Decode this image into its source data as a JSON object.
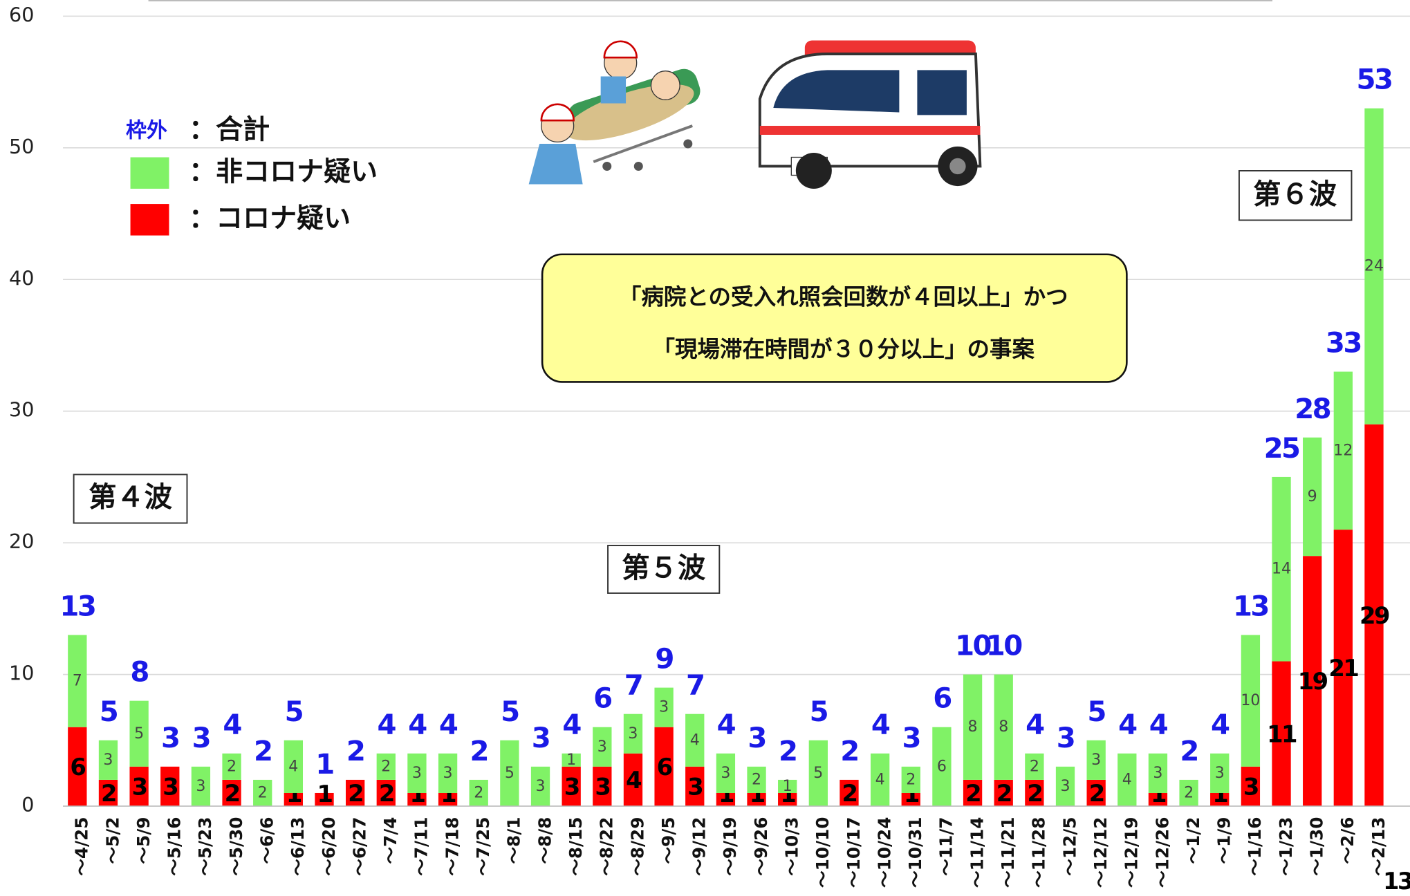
{
  "chart_data": {
    "type": "bar",
    "stacked": true,
    "categories": [
      "～4/25",
      "～5/2",
      "～5/9",
      "～5/16",
      "～5/23",
      "～5/30",
      "～6/6",
      "～6/13",
      "～6/20",
      "～6/27",
      "～7/4",
      "～7/11",
      "～7/18",
      "～7/25",
      "～8/1",
      "～8/8",
      "～8/15",
      "～8/22",
      "～8/29",
      "～9/5",
      "～9/12",
      "～9/19",
      "～9/26",
      "～10/3",
      "～10/10",
      "～10/17",
      "～10/24",
      "～10/31",
      "～11/7",
      "～11/14",
      "～11/21",
      "～11/28",
      "～12/5",
      "～12/12",
      "～12/19",
      "～12/26",
      "～1/2",
      "～1/9",
      "～1/16",
      "～1/23",
      "～1/30",
      "～2/6",
      "～2/13"
    ],
    "series": [
      {
        "name": "コロナ疑い",
        "color": "#ff0000",
        "values": [
          6,
          2,
          3,
          3,
          0,
          2,
          0,
          1,
          1,
          2,
          2,
          1,
          1,
          0,
          0,
          0,
          3,
          3,
          4,
          6,
          3,
          1,
          1,
          1,
          0,
          2,
          0,
          1,
          0,
          2,
          2,
          2,
          0,
          2,
          0,
          1,
          0,
          1,
          3,
          11,
          19,
          21,
          29
        ]
      },
      {
        "name": "非コロナ疑い",
        "color": "#80f266",
        "values": [
          7,
          3,
          5,
          0,
          3,
          2,
          2,
          4,
          0,
          0,
          2,
          3,
          3,
          2,
          5,
          3,
          1,
          3,
          3,
          3,
          4,
          3,
          2,
          1,
          5,
          0,
          4,
          2,
          6,
          8,
          8,
          2,
          3,
          3,
          4,
          3,
          2,
          3,
          10,
          14,
          9,
          12,
          24
        ]
      }
    ],
    "totals": [
      13,
      5,
      8,
      3,
      3,
      4,
      2,
      5,
      1,
      2,
      4,
      4,
      4,
      2,
      5,
      3,
      4,
      6,
      7,
      9,
      7,
      4,
      3,
      2,
      5,
      2,
      4,
      3,
      6,
      10,
      10,
      4,
      3,
      5,
      4,
      4,
      2,
      4,
      13,
      25,
      28,
      33,
      53
    ],
    "ylim": [
      0,
      60
    ],
    "yticks": [
      0,
      10,
      20,
      30,
      40,
      50,
      60
    ],
    "grid": true,
    "legend": {
      "total_marker": "枠外",
      "total_name": "合計",
      "separator": "："
    },
    "annotations": {
      "wave4": "第４波",
      "wave5": "第５波",
      "wave6": "第６波",
      "note_line1": "「病院との受入れ照会回数が４回以上」かつ",
      "note_line2": "「現場滞在時間が３０分以上」の事案",
      "corner": "13"
    }
  }
}
